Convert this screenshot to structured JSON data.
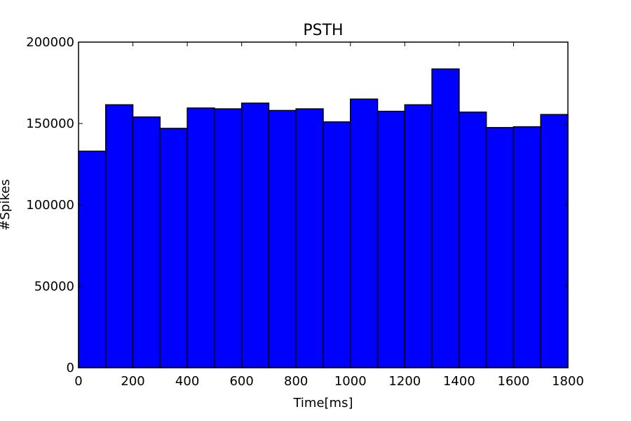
{
  "chart_data": {
    "type": "bar",
    "title": "PSTH",
    "xlabel": "Time[ms]",
    "ylabel": "#Spikes",
    "bin_edges": [
      0,
      100,
      200,
      300,
      400,
      500,
      600,
      700,
      800,
      900,
      1000,
      1100,
      1200,
      1300,
      1400,
      1500,
      1600,
      1700,
      1800
    ],
    "values": [
      133000,
      161500,
      154000,
      147000,
      159500,
      159000,
      162500,
      158000,
      159000,
      151000,
      165000,
      157500,
      161500,
      183500,
      157000,
      147500,
      148000,
      155500
    ],
    "xlim": [
      0,
      1800
    ],
    "ylim": [
      0,
      200000
    ],
    "xticks": [
      0,
      200,
      400,
      600,
      800,
      1000,
      1200,
      1400,
      1600,
      1800
    ],
    "xtick_labels": [
      "0",
      "200",
      "400",
      "600",
      "800",
      "1000",
      "1200",
      "1400",
      "1600",
      "1800"
    ],
    "yticks": [
      0,
      50000,
      100000,
      150000,
      200000
    ],
    "ytick_labels": [
      "0",
      "50000",
      "100000",
      "150000",
      "200000"
    ],
    "grid": false,
    "bar_color": "#0000ff",
    "edge_color": "#000000"
  }
}
